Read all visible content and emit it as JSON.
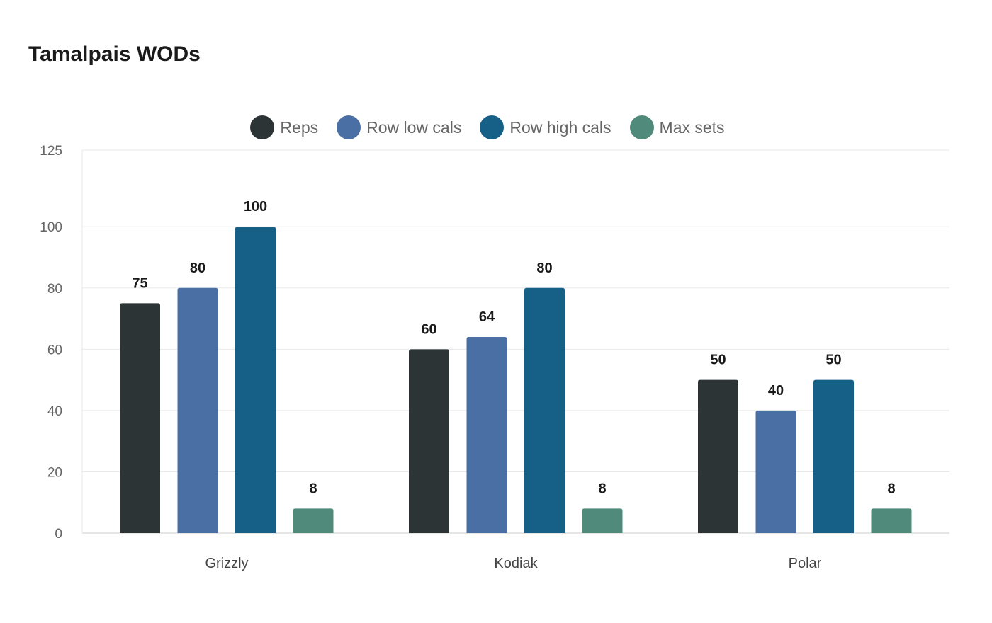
{
  "chart_data": {
    "type": "bar",
    "title": "Tamalpais WODs",
    "categories": [
      "Grizzly",
      "Kodiak",
      "Polar"
    ],
    "series": [
      {
        "name": "Reps",
        "color": "#2d3436",
        "values": [
          75,
          60,
          50
        ]
      },
      {
        "name": "Row low cals",
        "color": "#4a6fa5",
        "values": [
          80,
          64,
          40
        ]
      },
      {
        "name": "Row high cals",
        "color": "#166088",
        "values": [
          100,
          80,
          50
        ]
      },
      {
        "name": "Max sets",
        "color": "#4f8a7a",
        "values": [
          8,
          8,
          8
        ]
      }
    ],
    "yticks": [
      0,
      20,
      40,
      60,
      80,
      100,
      125
    ],
    "ylim": [
      0,
      125
    ],
    "grid": true,
    "legend": "top-center",
    "data_labels": true
  }
}
